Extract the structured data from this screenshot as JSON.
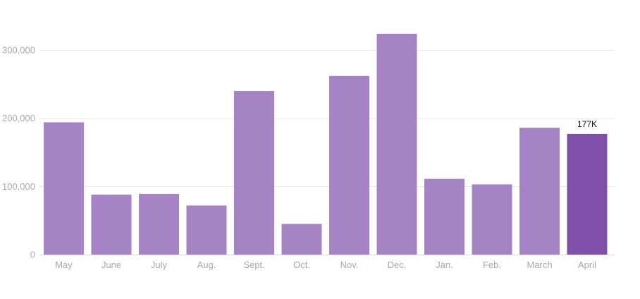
{
  "chart_data": {
    "type": "bar",
    "categories": [
      "May",
      "June",
      "July",
      "Aug.",
      "Sept.",
      "Oct.",
      "Nov.",
      "Dec.",
      "Jan.",
      "Feb.",
      "March",
      "April"
    ],
    "values": [
      194000,
      88000,
      89000,
      72000,
      240000,
      45000,
      262000,
      324000,
      111000,
      103000,
      186000,
      177000
    ],
    "title": "",
    "xlabel": "",
    "ylabel": "",
    "ylim": [
      0,
      340000
    ],
    "yticks": [
      0,
      100000,
      200000,
      300000
    ],
    "ytick_labels": [
      "0",
      "100,000",
      "200,000",
      "300,000"
    ],
    "grid": true,
    "highlight_index": 11,
    "data_labels": [
      {
        "index": 11,
        "text": "177K"
      }
    ],
    "colors": {
      "bar": "#a683c5",
      "highlight": "#7f4ea8"
    }
  }
}
